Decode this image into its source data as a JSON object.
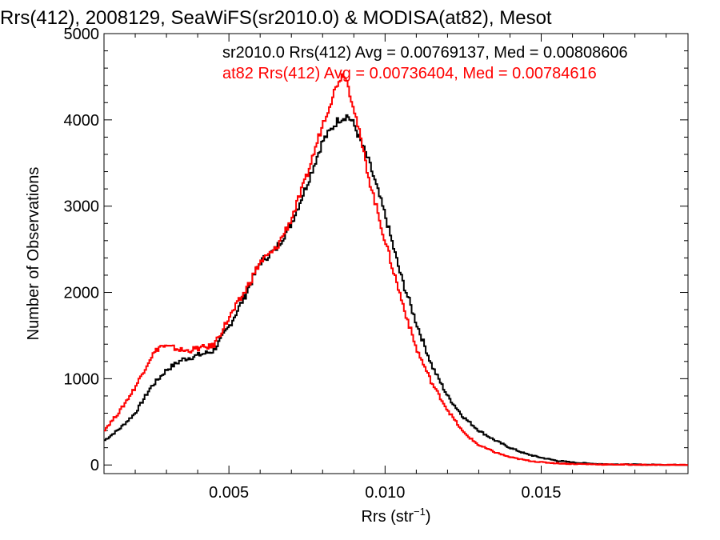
{
  "chart_data": {
    "type": "line",
    "title": "Rrs(412), 2008129, SeaWiFS(sr2010.0) & MODISA(at82), Mesot",
    "xlabel": "Rrs (str",
    "xlabel_sup": "−1",
    "xlabel_end": ")",
    "ylabel": "Number of Observations",
    "xlim": [
      0.001,
      0.0197
    ],
    "ylim": [
      -100,
      5000
    ],
    "x_ticks": [
      0.005,
      0.01,
      0.015
    ],
    "x_tick_labels": [
      "0.005",
      "0.010",
      "0.015"
    ],
    "y_ticks": [
      0,
      1000,
      2000,
      3000,
      4000,
      5000
    ],
    "y_tick_labels": [
      "0",
      "1000",
      "2000",
      "3000",
      "4000",
      "5000"
    ],
    "step": true,
    "series": [
      {
        "name": "sr2010.0",
        "legend_text": "sr2010.0 Rrs(412) Avg = 0.00769137, Med = 0.00808606",
        "color": "#000000",
        "points": [
          [
            0.001,
            280
          ],
          [
            0.0015,
            420
          ],
          [
            0.002,
            600
          ],
          [
            0.0025,
            900
          ],
          [
            0.003,
            1100
          ],
          [
            0.0035,
            1220
          ],
          [
            0.004,
            1270
          ],
          [
            0.0045,
            1320
          ],
          [
            0.005,
            1600
          ],
          [
            0.0055,
            1950
          ],
          [
            0.006,
            2350
          ],
          [
            0.0065,
            2500
          ],
          [
            0.007,
            2800
          ],
          [
            0.0075,
            3250
          ],
          [
            0.008,
            3750
          ],
          [
            0.0085,
            4000
          ],
          [
            0.0088,
            4050
          ],
          [
            0.009,
            3950
          ],
          [
            0.0095,
            3500
          ],
          [
            0.01,
            2900
          ],
          [
            0.0105,
            2200
          ],
          [
            0.011,
            1650
          ],
          [
            0.0115,
            1150
          ],
          [
            0.012,
            800
          ],
          [
            0.0125,
            560
          ],
          [
            0.013,
            400
          ],
          [
            0.0135,
            290
          ],
          [
            0.014,
            200
          ],
          [
            0.0145,
            130
          ],
          [
            0.015,
            85
          ],
          [
            0.0155,
            50
          ],
          [
            0.016,
            30
          ],
          [
            0.0165,
            18
          ],
          [
            0.017,
            10
          ],
          [
            0.018,
            5
          ],
          [
            0.019,
            2
          ],
          [
            0.0197,
            0
          ]
        ]
      },
      {
        "name": "at82",
        "legend_text": "at82 Rrs(412) Avg = 0.00736404, Med = 0.00784616",
        "color": "#ff0000",
        "points": [
          [
            0.001,
            400
          ],
          [
            0.0015,
            620
          ],
          [
            0.002,
            900
          ],
          [
            0.0025,
            1250
          ],
          [
            0.0028,
            1380
          ],
          [
            0.0032,
            1360
          ],
          [
            0.0036,
            1320
          ],
          [
            0.004,
            1350
          ],
          [
            0.0045,
            1380
          ],
          [
            0.005,
            1700
          ],
          [
            0.0055,
            2000
          ],
          [
            0.006,
            2350
          ],
          [
            0.0065,
            2500
          ],
          [
            0.007,
            2850
          ],
          [
            0.0075,
            3350
          ],
          [
            0.008,
            3950
          ],
          [
            0.0085,
            4450
          ],
          [
            0.0087,
            4550
          ],
          [
            0.009,
            4150
          ],
          [
            0.0095,
            3300
          ],
          [
            0.01,
            2600
          ],
          [
            0.0105,
            1950
          ],
          [
            0.011,
            1350
          ],
          [
            0.0115,
            950
          ],
          [
            0.012,
            640
          ],
          [
            0.0125,
            380
          ],
          [
            0.013,
            230
          ],
          [
            0.0135,
            150
          ],
          [
            0.014,
            90
          ],
          [
            0.0145,
            55
          ],
          [
            0.015,
            32
          ],
          [
            0.0155,
            20
          ],
          [
            0.016,
            12
          ],
          [
            0.017,
            6
          ],
          [
            0.018,
            3
          ],
          [
            0.019,
            1
          ],
          [
            0.0197,
            0
          ]
        ]
      }
    ]
  }
}
